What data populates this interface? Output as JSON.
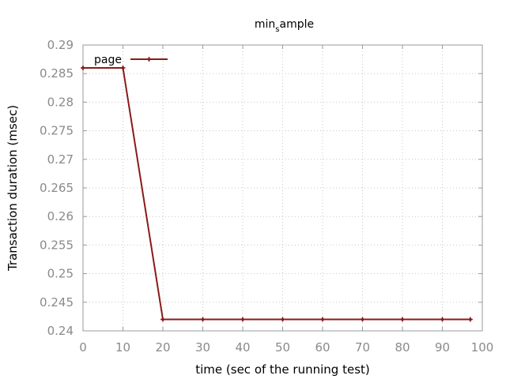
{
  "chart_data": {
    "type": "line",
    "title_main": "min",
    "title_sub": "s",
    "title_rest": "ample",
    "xlabel": "time (sec of the running test)",
    "ylabel": "Transaction duration (msec)",
    "xlim": [
      0,
      100
    ],
    "ylim": [
      0.24,
      0.29
    ],
    "xticks": [
      0,
      10,
      20,
      30,
      40,
      50,
      60,
      70,
      80,
      90,
      100
    ],
    "yticks": [
      "0.24",
      "0.245",
      "0.25",
      "0.255",
      "0.26",
      "0.265",
      "0.27",
      "0.275",
      "0.28",
      "0.285",
      "0.29"
    ],
    "grid": true,
    "legend_position": "top-left",
    "series": [
      {
        "name": "page",
        "color": "#8b1a1a",
        "x": [
          0,
          10,
          20,
          30,
          40,
          50,
          60,
          70,
          80,
          90,
          97
        ],
        "y": [
          0.286,
          0.286,
          0.242,
          0.242,
          0.242,
          0.242,
          0.242,
          0.242,
          0.242,
          0.242,
          0.242
        ]
      }
    ]
  }
}
